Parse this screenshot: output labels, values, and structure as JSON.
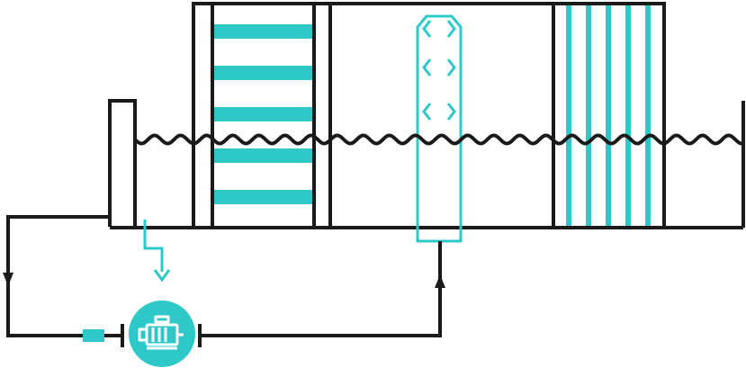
{
  "diagram": {
    "kind": "water-treatment-tank-schematic",
    "colors": {
      "line": "#1a1a1a",
      "accent": "#2ec8c8",
      "background": "#ffffff"
    },
    "components": [
      {
        "name": "inlet-weir",
        "icon": "weir"
      },
      {
        "name": "horizontal-baffle-section",
        "icon": "baffles-horizontal"
      },
      {
        "name": "aeration-column",
        "icon": "air-diffuser"
      },
      {
        "name": "vertical-plate-section",
        "icon": "baffles-vertical"
      },
      {
        "name": "water-surface",
        "icon": "wave-line"
      },
      {
        "name": "drain-outlet",
        "icon": "down-arrow"
      },
      {
        "name": "circulation-pump",
        "icon": "motor-pump-icon"
      },
      {
        "name": "return-pipe",
        "icon": "flow-arrows"
      }
    ]
  }
}
